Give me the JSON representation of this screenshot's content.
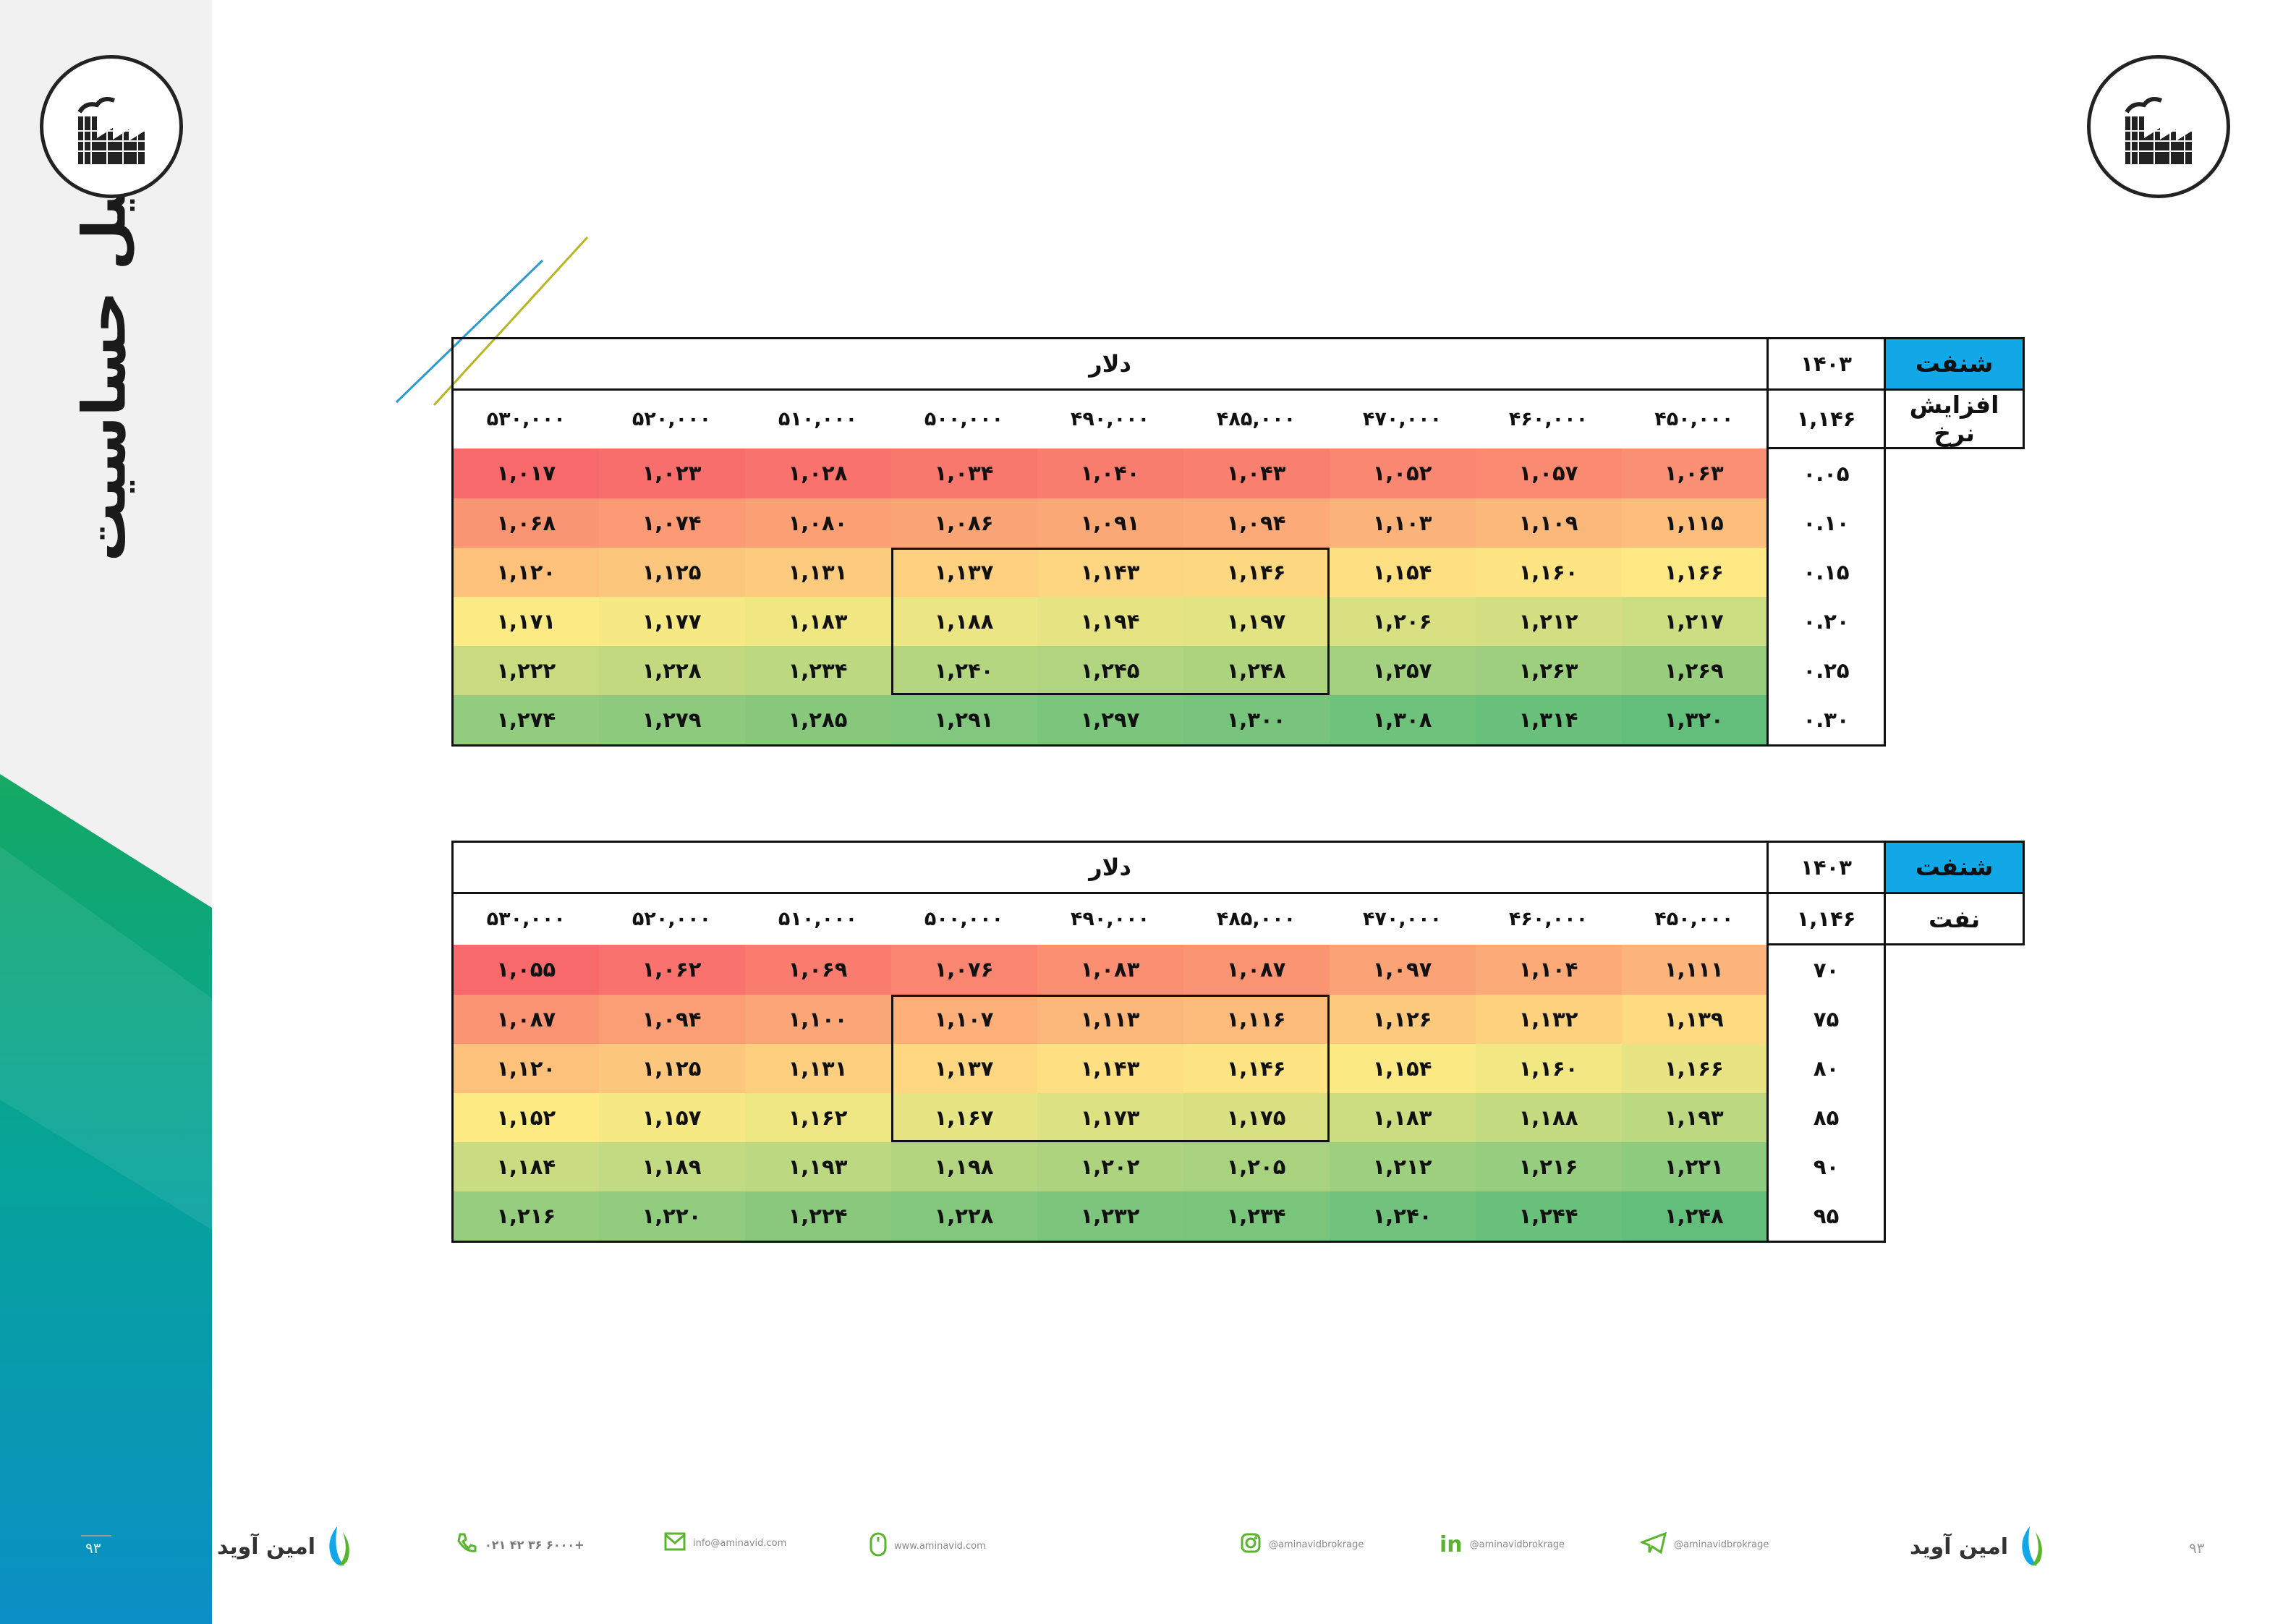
{
  "sidebar": {
    "title": "تحلیل حساسیت",
    "page_number": "۹۳"
  },
  "colors": {
    "corner": "#12a8e8",
    "high": "#f8696b",
    "mid": "#ffeb84",
    "low": "#63be7b"
  },
  "table1": {
    "corner_label": "شنفت",
    "year": "۱۴۰۳",
    "column_group": "دلار",
    "base_value": "۱,۱۴۶",
    "row_variable": "افزایش نرخ",
    "columns": [
      "۴۵۰,۰۰۰",
      "۴۶۰,۰۰۰",
      "۴۷۰,۰۰۰",
      "۴۸۵,۰۰۰",
      "۴۹۰,۰۰۰",
      "۵۰۰,۰۰۰",
      "۵۱۰,۰۰۰",
      "۵۲۰,۰۰۰",
      "۵۳۰,۰۰۰"
    ],
    "rows": [
      {
        "label": "۰.۰۵",
        "values": [
          "۱,۰۶۳",
          "۱,۰۵۷",
          "۱,۰۵۲",
          "۱,۰۴۳",
          "۱,۰۴۰",
          "۱,۰۳۴",
          "۱,۰۲۸",
          "۱,۰۲۳",
          "۱,۰۱۷"
        ],
        "raw": [
          1063,
          1057,
          1052,
          1043,
          1040,
          1034,
          1028,
          1023,
          1017
        ]
      },
      {
        "label": "۰.۱۰",
        "values": [
          "۱,۱۱۵",
          "۱,۱۰۹",
          "۱,۱۰۳",
          "۱,۰۹۴",
          "۱,۰۹۱",
          "۱,۰۸۶",
          "۱,۰۸۰",
          "۱,۰۷۴",
          "۱,۰۶۸"
        ],
        "raw": [
          1115,
          1109,
          1103,
          1094,
          1091,
          1086,
          1080,
          1074,
          1068
        ]
      },
      {
        "label": "۰.۱۵",
        "values": [
          "۱,۱۶۶",
          "۱,۱۶۰",
          "۱,۱۵۴",
          "۱,۱۴۶",
          "۱,۱۴۳",
          "۱,۱۳۷",
          "۱,۱۳۱",
          "۱,۱۲۵",
          "۱,۱۲۰"
        ],
        "raw": [
          1166,
          1160,
          1154,
          1146,
          1143,
          1137,
          1131,
          1125,
          1120
        ]
      },
      {
        "label": "۰.۲۰",
        "values": [
          "۱,۲۱۷",
          "۱,۲۱۲",
          "۱,۲۰۶",
          "۱,۱۹۷",
          "۱,۱۹۴",
          "۱,۱۸۸",
          "۱,۱۸۳",
          "۱,۱۷۷",
          "۱,۱۷۱"
        ],
        "raw": [
          1217,
          1212,
          1206,
          1197,
          1194,
          1188,
          1183,
          1177,
          1171
        ]
      },
      {
        "label": "۰.۲۵",
        "values": [
          "۱,۲۶۹",
          "۱,۲۶۳",
          "۱,۲۵۷",
          "۱,۲۴۸",
          "۱,۲۴۵",
          "۱,۲۴۰",
          "۱,۲۳۴",
          "۱,۲۲۸",
          "۱,۲۲۲"
        ],
        "raw": [
          1269,
          1263,
          1257,
          1248,
          1245,
          1240,
          1234,
          1228,
          1222
        ]
      },
      {
        "label": "۰.۳۰",
        "values": [
          "۱,۳۲۰",
          "۱,۳۱۴",
          "۱,۳۰۸",
          "۱,۳۰۰",
          "۱,۲۹۷",
          "۱,۲۹۱",
          "۱,۲۸۵",
          "۱,۲۷۹",
          "۱,۲۷۴"
        ],
        "raw": [
          1320,
          1314,
          1308,
          1300,
          1297,
          1291,
          1285,
          1279,
          1274
        ]
      }
    ]
  },
  "table2": {
    "corner_label": "شنفت",
    "year": "۱۴۰۳",
    "column_group": "دلار",
    "base_value": "۱,۱۴۶",
    "row_variable": "نفت",
    "columns": [
      "۴۵۰,۰۰۰",
      "۴۶۰,۰۰۰",
      "۴۷۰,۰۰۰",
      "۴۸۵,۰۰۰",
      "۴۹۰,۰۰۰",
      "۵۰۰,۰۰۰",
      "۵۱۰,۰۰۰",
      "۵۲۰,۰۰۰",
      "۵۳۰,۰۰۰"
    ],
    "rows": [
      {
        "label": "۷۰",
        "values": [
          "۱,۱۱۱",
          "۱,۱۰۴",
          "۱,۰۹۷",
          "۱,۰۸۷",
          "۱,۰۸۳",
          "۱,۰۷۶",
          "۱,۰۶۹",
          "۱,۰۶۲",
          "۱,۰۵۵"
        ],
        "raw": [
          1111,
          1104,
          1097,
          1087,
          1083,
          1076,
          1069,
          1062,
          1055
        ]
      },
      {
        "label": "۷۵",
        "values": [
          "۱,۱۳۹",
          "۱,۱۳۲",
          "۱,۱۲۶",
          "۱,۱۱۶",
          "۱,۱۱۳",
          "۱,۱۰۷",
          "۱,۱۰۰",
          "۱,۰۹۴",
          "۱,۰۸۷"
        ],
        "raw": [
          1139,
          1132,
          1126,
          1116,
          1113,
          1107,
          1100,
          1094,
          1087
        ]
      },
      {
        "label": "۸۰",
        "values": [
          "۱,۱۶۶",
          "۱,۱۶۰",
          "۱,۱۵۴",
          "۱,۱۴۶",
          "۱,۱۴۳",
          "۱,۱۳۷",
          "۱,۱۳۱",
          "۱,۱۲۵",
          "۱,۱۲۰"
        ],
        "raw": [
          1166,
          1160,
          1154,
          1146,
          1143,
          1137,
          1131,
          1125,
          1120
        ]
      },
      {
        "label": "۸۵",
        "values": [
          "۱,۱۹۳",
          "۱,۱۸۸",
          "۱,۱۸۳",
          "۱,۱۷۵",
          "۱,۱۷۳",
          "۱,۱۶۷",
          "۱,۱۶۲",
          "۱,۱۵۷",
          "۱,۱۵۲"
        ],
        "raw": [
          1193,
          1188,
          1183,
          1175,
          1173,
          1167,
          1162,
          1157,
          1152
        ]
      },
      {
        "label": "۹۰",
        "values": [
          "۱,۲۲۱",
          "۱,۲۱۶",
          "۱,۲۱۲",
          "۱,۲۰۵",
          "۱,۲۰۲",
          "۱,۱۹۸",
          "۱,۱۹۳",
          "۱,۱۸۹",
          "۱,۱۸۴"
        ],
        "raw": [
          1221,
          1216,
          1212,
          1205,
          1202,
          1198,
          1193,
          1189,
          1184
        ]
      },
      {
        "label": "۹۵",
        "values": [
          "۱,۲۴۸",
          "۱,۲۴۴",
          "۱,۲۴۰",
          "۱,۲۳۴",
          "۱,۲۳۲",
          "۱,۲۲۸",
          "۱,۲۲۴",
          "۱,۲۲۰",
          "۱,۲۱۶"
        ],
        "raw": [
          1248,
          1244,
          1240,
          1234,
          1232,
          1228,
          1224,
          1220,
          1216
        ]
      }
    ]
  },
  "footer": {
    "brand": "امین آوید",
    "telegram": "@aminavidbrokrage",
    "linkedin": "@aminavidbrokrage",
    "instagram": "@aminavidbrokrage",
    "website": "www.aminavid.com",
    "email": "info@aminavid.com",
    "phone": "۰۲۱ ۴۲ ۳۶ ۶۰۰۰+",
    "page_number": "۹۳"
  }
}
